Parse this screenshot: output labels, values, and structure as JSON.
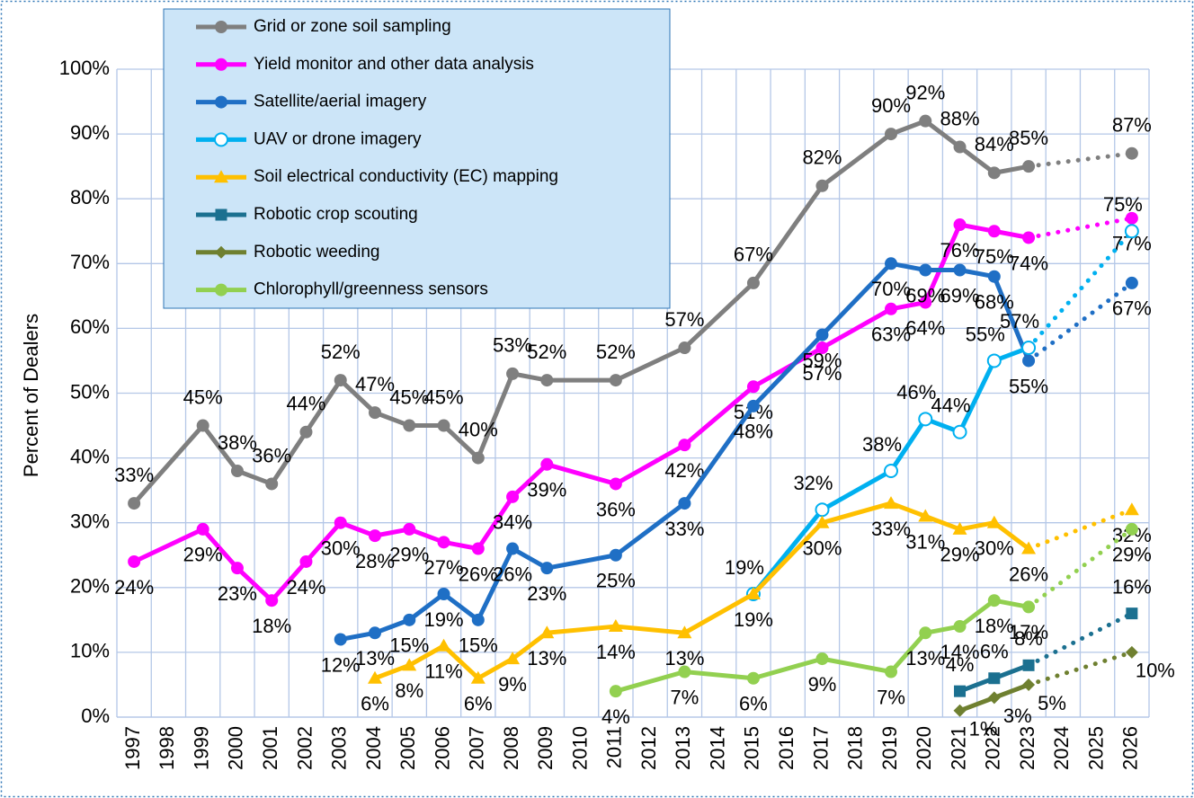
{
  "chart_data": {
    "type": "line",
    "y_label": "Percent of Dealers",
    "xlim": [
      1996.5,
      2026.5
    ],
    "xticks": [
      1997,
      1998,
      1999,
      2000,
      2001,
      2002,
      2003,
      2004,
      2005,
      2006,
      2007,
      2008,
      2009,
      2010,
      2011,
      2012,
      2013,
      2014,
      2015,
      2016,
      2017,
      2018,
      2019,
      2020,
      2021,
      2022,
      2023,
      2024,
      2025,
      2026
    ],
    "ylim": [
      0,
      100
    ],
    "yticks": [
      {
        "value": 0,
        "label": "0%"
      },
      {
        "value": 10,
        "label": "10%"
      },
      {
        "value": 20,
        "label": "20%"
      },
      {
        "value": 30,
        "label": "30%"
      },
      {
        "value": 40,
        "label": "40%"
      },
      {
        "value": 50,
        "label": "50%"
      },
      {
        "value": 60,
        "label": "60%"
      },
      {
        "value": 70,
        "label": "70%"
      },
      {
        "value": 80,
        "label": "80%"
      },
      {
        "value": 90,
        "label": "90%"
      },
      {
        "value": 100,
        "label": "100%"
      }
    ],
    "grid": true,
    "legend": "top-left",
    "last_segment_style": "dotted",
    "series": [
      {
        "name": "Grid or zone soil sampling",
        "color": "#7f7f7f",
        "marker": "circle",
        "x": [
          1997,
          1999,
          2000,
          2001,
          2002,
          2003,
          2004,
          2005,
          2006,
          2007,
          2008,
          2009,
          2011,
          2013,
          2015,
          2017,
          2019,
          2020,
          2021,
          2022,
          2023,
          2026
        ],
        "values": [
          33,
          45,
          38,
          36,
          44,
          52,
          47,
          45,
          45,
          40,
          53,
          52,
          52,
          57,
          67,
          82,
          90,
          92,
          88,
          84,
          85,
          87
        ],
        "value_labels": [
          "33%",
          "45%",
          "38%",
          "36%",
          "44%",
          "52%",
          "47%",
          "45%",
          "45%",
          "40%",
          "53%",
          "52%",
          "52%",
          "57%",
          "67%",
          "82%",
          "90%",
          "92%",
          "88%",
          "84%",
          "85%",
          "87%"
        ]
      },
      {
        "name": "Yield monitor and other data analysis",
        "color": "#ff00ff",
        "marker": "circle",
        "x": [
          1997,
          1999,
          2000,
          2001,
          2002,
          2003,
          2004,
          2005,
          2006,
          2007,
          2008,
          2009,
          2011,
          2013,
          2015,
          2017,
          2019,
          2020,
          2021,
          2022,
          2023,
          2026
        ],
        "values": [
          24,
          29,
          23,
          18,
          24,
          30,
          28,
          29,
          27,
          26,
          34,
          39,
          36,
          42,
          51,
          57,
          63,
          64,
          76,
          75,
          74,
          77
        ],
        "value_labels": [
          "24%",
          "29%",
          "23%",
          "18%",
          "24%",
          "30%",
          "28%",
          "29%",
          "27%",
          "26%",
          "34%",
          "39%",
          "36%",
          "42%",
          "51%",
          "57%",
          "63%",
          "64%",
          "76%",
          "75%",
          "74%",
          "77%"
        ]
      },
      {
        "name": "Satellite/aerial imagery",
        "color": "#1f6fc5",
        "marker": "circle",
        "x": [
          2003,
          2004,
          2005,
          2006,
          2007,
          2008,
          2009,
          2011,
          2013,
          2015,
          2017,
          2019,
          2020,
          2021,
          2022,
          2023,
          2026
        ],
        "values": [
          12,
          13,
          15,
          19,
          15,
          26,
          23,
          25,
          33,
          48,
          59,
          70,
          69,
          69,
          68,
          55,
          67
        ],
        "value_labels": [
          "12%",
          "13%",
          "15%",
          "19%",
          "15%",
          "26%",
          "23%",
          "25%",
          "33%",
          "48%",
          "59%",
          "70%",
          "69%",
          "69%",
          "68%",
          "55%",
          "67%"
        ]
      },
      {
        "name": "UAV or drone imagery",
        "color": "#00b0f0",
        "marker": "open-circle",
        "x": [
          2015,
          2017,
          2019,
          2020,
          2021,
          2022,
          2023,
          2026
        ],
        "values": [
          19,
          32,
          38,
          46,
          44,
          55,
          57,
          75
        ],
        "value_labels": [
          "19%",
          "32%",
          "38%",
          "46%",
          "44%",
          "55%",
          "57%",
          "75%"
        ]
      },
      {
        "name": "Soil electrical conductivity (EC) mapping",
        "color": "#ffc000",
        "marker": "triangle",
        "x": [
          2004,
          2005,
          2006,
          2007,
          2008,
          2009,
          2011,
          2013,
          2015,
          2017,
          2019,
          2020,
          2021,
          2022,
          2023,
          2026
        ],
        "values": [
          6,
          8,
          11,
          6,
          9,
          13,
          14,
          13,
          19,
          30,
          33,
          31,
          29,
          30,
          26,
          32
        ],
        "value_labels": [
          "6%",
          "8%",
          "11%",
          "6%",
          "9%",
          "13%",
          "14%",
          "13%",
          "19%",
          "30%",
          "33%",
          "31%",
          "29%",
          "30%",
          "26%",
          "32%"
        ]
      },
      {
        "name": "Robotic crop scouting",
        "color": "#1b7090",
        "marker": "square",
        "x": [
          2021,
          2022,
          2023,
          2026
        ],
        "values": [
          4,
          6,
          8,
          16
        ],
        "value_labels": [
          "4%",
          "6%",
          "8%",
          "16%"
        ]
      },
      {
        "name": "Robotic weeding",
        "color": "#6f8030",
        "marker": "diamond",
        "x": [
          2021,
          2022,
          2023,
          2026
        ],
        "values": [
          1,
          3,
          5,
          10
        ],
        "value_labels": [
          "1%",
          "3%",
          "5%",
          "10%"
        ]
      },
      {
        "name": "Chlorophyll/greenness sensors",
        "color": "#92d050",
        "marker": "circle",
        "x": [
          2011,
          2013,
          2015,
          2017,
          2019,
          2020,
          2021,
          2022,
          2023,
          2026
        ],
        "values": [
          4,
          7,
          6,
          9,
          7,
          13,
          14,
          18,
          17,
          29
        ],
        "value_labels": [
          "4%",
          "7%",
          "6%",
          "9%",
          "7%",
          "13%",
          "14%",
          "18%",
          "17%",
          "29%"
        ]
      }
    ]
  }
}
